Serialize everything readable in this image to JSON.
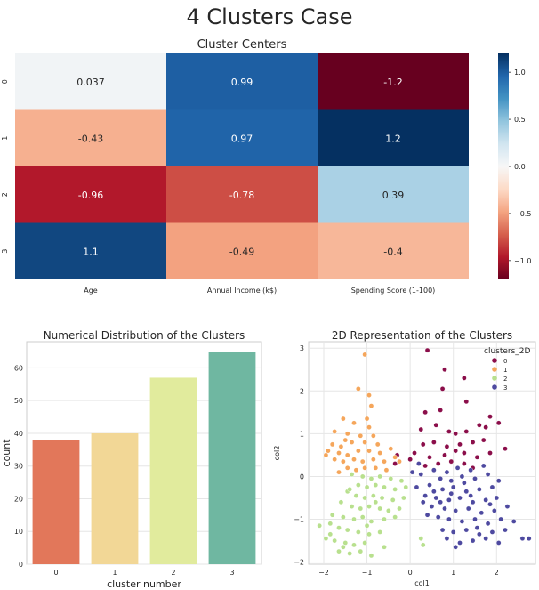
{
  "page": {
    "title": "4 Clusters Case"
  },
  "chart_data": [
    {
      "type": "heatmap",
      "title": "Cluster Centers",
      "rows": [
        "0",
        "1",
        "2",
        "3"
      ],
      "columns": [
        "Age",
        "Annual Income (k$)",
        "Spending Score (1-100)"
      ],
      "values": [
        [
          0.037,
          0.99,
          -1.2
        ],
        [
          -0.43,
          0.97,
          1.2
        ],
        [
          -0.96,
          -0.78,
          0.39
        ],
        [
          1.1,
          -0.49,
          -0.4
        ]
      ],
      "value_labels": [
        [
          "0.037",
          "0.99",
          "-1.2"
        ],
        [
          "-0.43",
          "0.97",
          "1.2"
        ],
        [
          "-0.96",
          "-0.78",
          "0.39"
        ],
        [
          "1.1",
          "-0.49",
          "-0.4"
        ]
      ],
      "colormap": "RdBu",
      "vmin": -1.2,
      "vmax": 1.2,
      "colorbar_ticks": [
        1.0,
        0.5,
        0.0,
        -0.5,
        -1.0
      ],
      "colorbar_tick_labels": [
        "1.0",
        "0.5",
        "0.0",
        "−0.5",
        "−1.0"
      ]
    },
    {
      "type": "bar",
      "title": "Numerical Distribution of the Clusters",
      "xlabel": "cluster number",
      "ylabel": "count",
      "categories": [
        "0",
        "1",
        "2",
        "3"
      ],
      "values": [
        38,
        40,
        57,
        65
      ],
      "colors": [
        "#e2775a",
        "#f2d796",
        "#e1eb9d",
        "#6fb7a1"
      ],
      "ylim": [
        0,
        68
      ],
      "yticks": [
        0,
        10,
        20,
        30,
        40,
        50,
        60
      ],
      "ytick_labels": [
        "0",
        "10",
        "20",
        "30",
        "40",
        "50",
        "60"
      ],
      "grid": true
    },
    {
      "type": "scatter",
      "title": "2D Representation of the Clusters",
      "xlabel": "col1",
      "ylabel": "col2",
      "xlim": [
        -2.35,
        2.9
      ],
      "ylim": [
        -2.05,
        3.15
      ],
      "xticks": [
        -2,
        -1,
        0,
        1,
        2
      ],
      "xtick_labels": [
        "−2",
        "−1",
        "0",
        "1",
        "2"
      ],
      "yticks": [
        -2,
        -1,
        0,
        1,
        2,
        3
      ],
      "ytick_labels": [
        "−2",
        "−1",
        "0",
        "1",
        "2",
        "3"
      ],
      "grid": true,
      "legend": {
        "title": "clusters_2D",
        "placement": "top-right"
      },
      "series": [
        {
          "name": "0",
          "color": "#8b0e4a",
          "points": [
            [
              0.4,
              2.95
            ],
            [
              0.8,
              2.5
            ],
            [
              1.25,
              2.3
            ],
            [
              0.75,
              2.05
            ],
            [
              1.3,
              1.75
            ],
            [
              0.35,
              1.5
            ],
            [
              0.7,
              1.55
            ],
            [
              1.85,
              1.4
            ],
            [
              0.25,
              1.1
            ],
            [
              0.6,
              1.2
            ],
            [
              0.9,
              1.05
            ],
            [
              1.05,
              1.0
            ],
            [
              1.3,
              1.05
            ],
            [
              1.6,
              1.2
            ],
            [
              1.75,
              1.15
            ],
            [
              2.05,
              1.25
            ],
            [
              0.3,
              0.75
            ],
            [
              0.55,
              0.8
            ],
            [
              0.85,
              0.7
            ],
            [
              1.15,
              0.75
            ],
            [
              1.45,
              0.8
            ],
            [
              1.7,
              0.85
            ],
            [
              0.1,
              0.55
            ],
            [
              0.45,
              0.45
            ],
            [
              0.8,
              0.5
            ],
            [
              1.05,
              0.6
            ],
            [
              1.25,
              0.55
            ],
            [
              1.55,
              0.45
            ],
            [
              1.85,
              0.55
            ],
            [
              2.2,
              0.65
            ],
            [
              -0.3,
              0.5
            ],
            [
              0.0,
              0.4
            ],
            [
              0.35,
              0.25
            ],
            [
              0.65,
              0.3
            ],
            [
              0.95,
              0.35
            ],
            [
              1.25,
              0.3
            ],
            [
              1.45,
              0.2
            ],
            [
              -0.35,
              0.3
            ]
          ]
        },
        {
          "name": "1",
          "color": "#f5a65b",
          "points": [
            [
              -1.05,
              2.85
            ],
            [
              -1.2,
              2.05
            ],
            [
              -0.95,
              1.9
            ],
            [
              -0.9,
              1.65
            ],
            [
              -1.55,
              1.35
            ],
            [
              -1.3,
              1.25
            ],
            [
              -0.95,
              1.15
            ],
            [
              -1.75,
              1.05
            ],
            [
              -1.45,
              1.0
            ],
            [
              -1.15,
              0.95
            ],
            [
              -0.85,
              0.95
            ],
            [
              -1.8,
              0.75
            ],
            [
              -1.6,
              0.7
            ],
            [
              -1.35,
              0.8
            ],
            [
              -1.05,
              0.8
            ],
            [
              -0.75,
              0.75
            ],
            [
              -1.9,
              0.6
            ],
            [
              -1.65,
              0.55
            ],
            [
              -1.45,
              0.5
            ],
            [
              -1.2,
              0.6
            ],
            [
              -0.95,
              0.6
            ],
            [
              -0.7,
              0.55
            ],
            [
              -0.45,
              0.65
            ],
            [
              -1.75,
              0.4
            ],
            [
              -1.55,
              0.35
            ],
            [
              -1.3,
              0.4
            ],
            [
              -1.1,
              0.35
            ],
            [
              -0.85,
              0.4
            ],
            [
              -0.6,
              0.35
            ],
            [
              -0.35,
              0.45
            ],
            [
              -1.95,
              0.5
            ],
            [
              -1.25,
              0.15
            ],
            [
              -1.05,
              0.2
            ],
            [
              -0.8,
              0.2
            ],
            [
              -0.55,
              0.15
            ],
            [
              -1.45,
              0.2
            ],
            [
              -1.65,
              0.1
            ],
            [
              -0.25,
              0.35
            ],
            [
              -1.0,
              1.35
            ],
            [
              -1.5,
              0.85
            ]
          ]
        },
        {
          "name": "2",
          "color": "#b8e08e",
          "points": [
            [
              -1.35,
              0.05
            ],
            [
              -1.1,
              0.0
            ],
            [
              -0.9,
              -0.05
            ],
            [
              -0.7,
              0.0
            ],
            [
              -0.45,
              -0.05
            ],
            [
              -0.2,
              -0.1
            ],
            [
              -1.2,
              -0.2
            ],
            [
              -1.0,
              -0.25
            ],
            [
              -0.8,
              -0.2
            ],
            [
              -0.6,
              -0.25
            ],
            [
              -0.35,
              -0.3
            ],
            [
              -0.1,
              -0.25
            ],
            [
              -1.45,
              -0.35
            ],
            [
              -1.25,
              -0.45
            ],
            [
              -1.05,
              -0.5
            ],
            [
              -0.85,
              -0.45
            ],
            [
              -0.65,
              -0.5
            ],
            [
              -0.4,
              -0.55
            ],
            [
              -0.15,
              -0.5
            ],
            [
              -1.6,
              -0.6
            ],
            [
              -1.35,
              -0.7
            ],
            [
              -1.15,
              -0.75
            ],
            [
              -0.95,
              -0.7
            ],
            [
              -0.7,
              -0.75
            ],
            [
              -0.5,
              -0.8
            ],
            [
              -0.25,
              -0.75
            ],
            [
              -1.8,
              -0.9
            ],
            [
              -1.55,
              -0.95
            ],
            [
              -1.3,
              -1.0
            ],
            [
              -1.1,
              -0.95
            ],
            [
              -0.9,
              -1.05
            ],
            [
              -0.6,
              -1.0
            ],
            [
              -0.35,
              -0.95
            ],
            [
              -2.1,
              -1.15
            ],
            [
              -1.85,
              -1.1
            ],
            [
              -1.65,
              -1.2
            ],
            [
              -1.45,
              -1.25
            ],
            [
              -1.2,
              -1.3
            ],
            [
              -0.95,
              -1.35
            ],
            [
              -0.7,
              -1.3
            ],
            [
              -1.95,
              -1.45
            ],
            [
              -1.75,
              -1.5
            ],
            [
              -1.5,
              -1.55
            ],
            [
              -1.3,
              -1.6
            ],
            [
              -1.05,
              -1.55
            ],
            [
              0.25,
              -1.45
            ],
            [
              -1.65,
              -1.75
            ],
            [
              -1.4,
              -1.8
            ],
            [
              -1.15,
              -1.75
            ],
            [
              -0.9,
              -1.85
            ],
            [
              -0.6,
              -1.65
            ],
            [
              0.3,
              -1.6
            ],
            [
              -1.55,
              -1.65
            ],
            [
              -1.85,
              -1.35
            ],
            [
              -1.0,
              -1.15
            ],
            [
              -0.8,
              -0.6
            ],
            [
              -1.4,
              -0.3
            ]
          ]
        },
        {
          "name": "3",
          "color": "#4e4aa0",
          "points": [
            [
              0.55,
              0.15
            ],
            [
              0.85,
              0.1
            ],
            [
              1.1,
              0.2
            ],
            [
              1.4,
              0.15
            ],
            [
              1.7,
              0.25
            ],
            [
              0.25,
              0.05
            ],
            [
              0.7,
              -0.05
            ],
            [
              0.95,
              -0.1
            ],
            [
              1.2,
              0.0
            ],
            [
              1.5,
              -0.05
            ],
            [
              1.8,
              0.05
            ],
            [
              2.05,
              -0.1
            ],
            [
              0.15,
              -0.25
            ],
            [
              0.45,
              -0.2
            ],
            [
              0.75,
              -0.3
            ],
            [
              1.0,
              -0.25
            ],
            [
              1.3,
              -0.35
            ],
            [
              1.6,
              -0.3
            ],
            [
              1.9,
              -0.25
            ],
            [
              0.35,
              -0.45
            ],
            [
              0.6,
              -0.5
            ],
            [
              0.9,
              -0.55
            ],
            [
              1.15,
              -0.5
            ],
            [
              1.45,
              -0.6
            ],
            [
              1.75,
              -0.55
            ],
            [
              2.0,
              -0.5
            ],
            [
              0.5,
              -0.7
            ],
            [
              0.8,
              -0.75
            ],
            [
              1.05,
              -0.8
            ],
            [
              1.35,
              -0.75
            ],
            [
              1.65,
              -0.85
            ],
            [
              1.95,
              -0.8
            ],
            [
              2.25,
              -0.7
            ],
            [
              0.65,
              -0.95
            ],
            [
              0.9,
              -1.0
            ],
            [
              1.2,
              -1.05
            ],
            [
              1.5,
              -1.0
            ],
            [
              1.8,
              -1.1
            ],
            [
              2.1,
              -1.0
            ],
            [
              0.75,
              -1.25
            ],
            [
              1.0,
              -1.3
            ],
            [
              1.3,
              -1.25
            ],
            [
              1.6,
              -1.35
            ],
            [
              1.9,
              -1.3
            ],
            [
              2.4,
              -1.05
            ],
            [
              0.85,
              -1.45
            ],
            [
              1.15,
              -1.55
            ],
            [
              1.45,
              -1.5
            ],
            [
              1.75,
              -1.45
            ],
            [
              2.05,
              -1.55
            ],
            [
              2.6,
              -1.45
            ],
            [
              2.75,
              -1.45
            ],
            [
              1.05,
              -1.65
            ],
            [
              0.4,
              -0.9
            ],
            [
              0.3,
              -0.6
            ],
            [
              0.05,
              0.1
            ],
            [
              0.2,
              0.3
            ],
            [
              0.55,
              -0.35
            ],
            [
              1.25,
              -0.15
            ],
            [
              1.55,
              -1.2
            ],
            [
              0.95,
              -0.4
            ],
            [
              1.85,
              -0.65
            ],
            [
              2.2,
              -1.25
            ],
            [
              0.7,
              -0.6
            ],
            [
              1.4,
              -0.45
            ]
          ]
        }
      ]
    }
  ]
}
